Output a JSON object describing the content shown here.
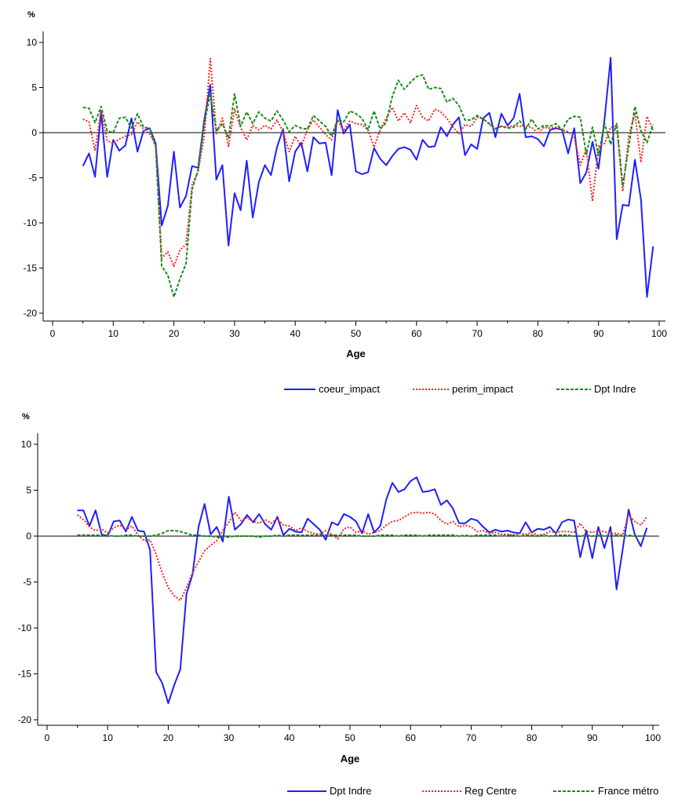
{
  "chart_data": [
    {
      "type": "line",
      "ylabel": "%",
      "xlabel": "Age",
      "xlim": [
        0,
        100
      ],
      "ylim": [
        -21,
        11
      ],
      "xticks": [
        0,
        10,
        20,
        30,
        40,
        50,
        60,
        70,
        80,
        90,
        100
      ],
      "yticks": [
        10,
        5,
        0,
        -5,
        -10,
        -15,
        -20
      ],
      "grid": false,
      "legend_position": "bottom-right",
      "x": [
        5,
        6,
        7,
        8,
        9,
        10,
        11,
        12,
        13,
        14,
        15,
        16,
        17,
        18,
        19,
        20,
        21,
        22,
        23,
        24,
        25,
        26,
        27,
        28,
        29,
        30,
        31,
        32,
        33,
        34,
        35,
        36,
        37,
        38,
        39,
        40,
        41,
        42,
        43,
        44,
        45,
        46,
        47,
        48,
        49,
        50,
        51,
        52,
        53,
        54,
        55,
        56,
        57,
        58,
        59,
        60,
        61,
        62,
        63,
        64,
        65,
        66,
        67,
        68,
        69,
        70,
        71,
        72,
        73,
        74,
        75,
        76,
        77,
        78,
        79,
        80,
        81,
        82,
        83,
        84,
        85,
        86,
        87,
        88,
        89,
        90,
        91,
        92,
        93,
        94,
        95,
        96,
        97,
        98,
        99
      ],
      "series": [
        {
          "name": "coeur_impact",
          "color": "#1f1fff",
          "dash": "solid",
          "values": [
            -3.7,
            -2.3,
            -4.9,
            2.3,
            -4.9,
            -0.8,
            -2.0,
            -1.4,
            1.6,
            -2.1,
            0.2,
            0.5,
            -1.2,
            -10.3,
            -8.1,
            -2.1,
            -8.3,
            -7.0,
            -3.7,
            -3.9,
            1.4,
            5.3,
            -5.2,
            -3.6,
            -12.5,
            -6.7,
            -8.6,
            -3.1,
            -9.4,
            -5.5,
            -3.6,
            -4.7,
            -1.6,
            0.4,
            -5.4,
            -2.1,
            -1.1,
            -4.3,
            -0.5,
            -1.2,
            -1.1,
            -4.7,
            2.5,
            -0.1,
            0.9,
            -4.3,
            -4.6,
            -4.4,
            -1.7,
            -2.9,
            -3.6,
            -2.6,
            -1.8,
            -1.6,
            -1.9,
            -3.0,
            -0.8,
            -1.6,
            -1.5,
            0.6,
            -0.4,
            0.9,
            1.7,
            -2.5,
            -1.3,
            -1.8,
            1.6,
            2.2,
            -0.5,
            2.1,
            0.8,
            1.6,
            4.3,
            -0.5,
            -0.4,
            -0.7,
            -1.5,
            0.3,
            0.5,
            0.3,
            -2.3,
            0.5,
            -5.6,
            -4.4,
            -1.0,
            -4.0,
            1.5,
            8.3,
            -11.8,
            -8.0,
            -8.1,
            -3.0,
            -7.4,
            -18.2,
            -12.6
          ]
        },
        {
          "name": "perim_impact",
          "color": "#ff2020",
          "dash": "dotted",
          "values": [
            1.5,
            1.2,
            -2.0,
            2.5,
            -0.9,
            -1.2,
            -0.7,
            -0.4,
            -0.2,
            1.2,
            0.4,
            -0.1,
            -1.5,
            -13.9,
            -13.2,
            -14.8,
            -13.0,
            -12.4,
            -5.8,
            -4.3,
            -0.4,
            8.2,
            -0.1,
            1.6,
            -1.5,
            2.6,
            0.6,
            -0.8,
            0.8,
            0.3,
            0.8,
            0.4,
            1.4,
            0.1,
            -2.1,
            -0.4,
            -1.5,
            0.3,
            1.4,
            0.6,
            -0.2,
            -0.8,
            1.4,
            0.2,
            1.3,
            1.0,
            0.9,
            0.3,
            -1.6,
            0.3,
            1.6,
            2.8,
            1.3,
            2.2,
            1.1,
            3.0,
            1.7,
            1.3,
            2.6,
            2.3,
            1.6,
            0.6,
            -0.1,
            0.9,
            0.7,
            1.7,
            1.6,
            0.9,
            0.5,
            0.7,
            0.6,
            0.8,
            0.7,
            0.7,
            0.6,
            -0.1,
            0.6,
            0.5,
            0.6,
            0.3,
            0.1,
            -0.5,
            -3.6,
            -1.8,
            -7.6,
            -1.5,
            -1.2,
            0.6,
            0.7,
            -6.5,
            -0.4,
            2.2,
            -3.3,
            1.8,
            0.3
          ]
        },
        {
          "name": "Dpt Indre",
          "color": "#1a8c1a",
          "dash": "dashed",
          "values": [
            2.8,
            2.7,
            1.1,
            2.9,
            0.2,
            0.0,
            1.6,
            1.7,
            0.5,
            2.1,
            0.6,
            0.5,
            -1.5,
            -14.8,
            -15.8,
            -18.2,
            -16.2,
            -14.5,
            -6.3,
            -4.1,
            1.0,
            4.3,
            0.2,
            1.0,
            -0.6,
            4.3,
            0.7,
            2.3,
            1.0,
            2.3,
            1.6,
            1.3,
            2.4,
            1.4,
            0.1,
            0.8,
            0.5,
            0.4,
            1.9,
            1.3,
            0.7,
            -0.4,
            1.5,
            1.2,
            2.4,
            2.1,
            1.6,
            0.3,
            2.4,
            0.4,
            1.1,
            4.0,
            5.8,
            4.8,
            5.6,
            6.2,
            6.4,
            4.8,
            5.0,
            4.9,
            3.4,
            3.8,
            3.0,
            1.4,
            1.4,
            1.9,
            1.5,
            1.0,
            0.4,
            0.7,
            0.5,
            0.6,
            1.3,
            0.4,
            1.5,
            0.4,
            0.8,
            0.7,
            1.0,
            0.3,
            1.5,
            1.8,
            1.7,
            -2.4,
            0.6,
            -2.5,
            1.0,
            -1.3,
            1.0,
            -5.9,
            -1.5,
            2.9,
            0.2,
            -1.1,
            0.9
          ]
        }
      ]
    },
    {
      "type": "line",
      "ylabel": "%",
      "xlabel": "Age",
      "xlim": [
        0,
        100
      ],
      "ylim": [
        -21,
        11
      ],
      "xticks": [
        0,
        10,
        20,
        30,
        40,
        50,
        60,
        70,
        80,
        90,
        100
      ],
      "yticks": [
        10,
        5,
        0,
        -5,
        -10,
        -15,
        -20
      ],
      "grid": false,
      "legend_position": "bottom-right",
      "x": [
        5,
        6,
        7,
        8,
        9,
        10,
        11,
        12,
        13,
        14,
        15,
        16,
        17,
        18,
        19,
        20,
        21,
        22,
        23,
        24,
        25,
        26,
        27,
        28,
        29,
        30,
        31,
        32,
        33,
        34,
        35,
        36,
        37,
        38,
        39,
        40,
        41,
        42,
        43,
        44,
        45,
        46,
        47,
        48,
        49,
        50,
        51,
        52,
        53,
        54,
        55,
        56,
        57,
        58,
        59,
        60,
        61,
        62,
        63,
        64,
        65,
        66,
        67,
        68,
        69,
        70,
        71,
        72,
        73,
        74,
        75,
        76,
        77,
        78,
        79,
        80,
        81,
        82,
        83,
        84,
        85,
        86,
        87,
        88,
        89,
        90,
        91,
        92,
        93,
        94,
        95,
        96,
        97,
        98,
        99
      ],
      "series": [
        {
          "name": "Dpt Indre",
          "color": "#1f1fff",
          "dash": "solid",
          "values": [
            2.8,
            2.8,
            1.1,
            2.8,
            0.2,
            0.0,
            1.6,
            1.7,
            0.5,
            2.1,
            0.6,
            0.5,
            -1.5,
            -14.8,
            -16.0,
            -18.2,
            -16.2,
            -14.5,
            -6.3,
            -4.2,
            1.0,
            3.5,
            0.2,
            1.0,
            -0.6,
            4.3,
            0.7,
            1.3,
            2.3,
            1.5,
            2.4,
            1.3,
            0.7,
            2.1,
            0.1,
            0.8,
            0.5,
            0.4,
            1.9,
            1.3,
            0.7,
            -0.4,
            1.5,
            1.2,
            2.4,
            2.1,
            1.6,
            0.3,
            2.4,
            0.4,
            1.1,
            4.0,
            5.8,
            4.8,
            5.1,
            6.0,
            6.4,
            4.8,
            4.9,
            5.1,
            3.4,
            3.9,
            3.0,
            1.4,
            1.4,
            1.9,
            1.7,
            1.0,
            0.4,
            0.7,
            0.5,
            0.6,
            0.4,
            0.3,
            1.5,
            0.4,
            0.8,
            0.7,
            1.0,
            0.3,
            1.5,
            1.8,
            1.7,
            -2.3,
            0.6,
            -2.4,
            1.0,
            -1.3,
            1.0,
            -5.8,
            -1.5,
            2.9,
            0.2,
            -1.1,
            0.9
          ]
        },
        {
          "name": "Reg Centre",
          "color": "#ff2020",
          "dash": "dotted",
          "values": [
            2.3,
            1.8,
            1.0,
            0.6,
            0.8,
            0.3,
            0.9,
            1.2,
            0.7,
            1.1,
            0.1,
            -0.5,
            -0.4,
            -2.0,
            -4.0,
            -5.6,
            -6.5,
            -7.0,
            -5.6,
            -4.0,
            -2.8,
            -1.6,
            -1.0,
            -0.5,
            0.6,
            1.5,
            2.6,
            1.7,
            2.0,
            1.6,
            1.4,
            1.8,
            1.4,
            1.9,
            1.2,
            1.1,
            0.6,
            0.9,
            0.5,
            0.3,
            0.2,
            0.6,
            0.2,
            -0.3,
            0.8,
            1.0,
            0.4,
            0.6,
            0.2,
            0.4,
            0.6,
            1.2,
            1.6,
            1.7,
            2.1,
            2.5,
            2.6,
            2.5,
            2.6,
            2.4,
            1.7,
            1.3,
            1.6,
            1.0,
            1.2,
            1.0,
            0.5,
            0.6,
            0.3,
            0.4,
            0.2,
            0.2,
            0.1,
            0.3,
            0.2,
            0.4,
            0.1,
            0.2,
            0.5,
            0.4,
            0.5,
            0.5,
            0.4,
            1.4,
            0.5,
            0.4,
            0.6,
            0.5,
            0.3,
            0.3,
            0.1,
            2.3,
            1.6,
            1.2,
            2.1
          ]
        },
        {
          "name": "France métro",
          "color": "#1a8c1a",
          "dash": "dashed",
          "values": [
            0.1,
            0.1,
            0.1,
            0.1,
            0.1,
            0.1,
            0.0,
            0.0,
            0.1,
            0.1,
            0.0,
            0.0,
            0.0,
            0.1,
            0.3,
            0.6,
            0.6,
            0.5,
            0.3,
            0.1,
            0.1,
            0.0,
            0.0,
            -0.1,
            -0.1,
            -0.1,
            0.0,
            0.0,
            0.0,
            0.0,
            -0.1,
            0.0,
            0.0,
            0.1,
            0.0,
            0.1,
            0.1,
            0.1,
            0.1,
            0.1,
            0.1,
            0.1,
            0.1,
            0.1,
            0.1,
            0.1,
            0.1,
            0.0,
            0.0,
            0.0,
            0.1,
            0.1,
            0.1,
            0.0,
            0.1,
            0.1,
            0.1,
            0.0,
            0.1,
            0.1,
            0.1,
            0.1,
            0.1,
            0.0,
            0.1,
            0.0,
            0.1,
            0.1,
            0.1,
            0.1,
            0.0,
            0.1,
            0.1,
            0.0,
            0.1,
            0.1,
            0.0,
            0.1,
            0.0,
            0.1,
            0.1,
            0.1,
            0.0,
            0.0,
            0.1,
            0.0,
            0.1,
            0.0,
            0.1,
            0.1,
            0.0,
            0.1,
            0.0,
            0.0,
            0.1
          ]
        }
      ]
    }
  ]
}
